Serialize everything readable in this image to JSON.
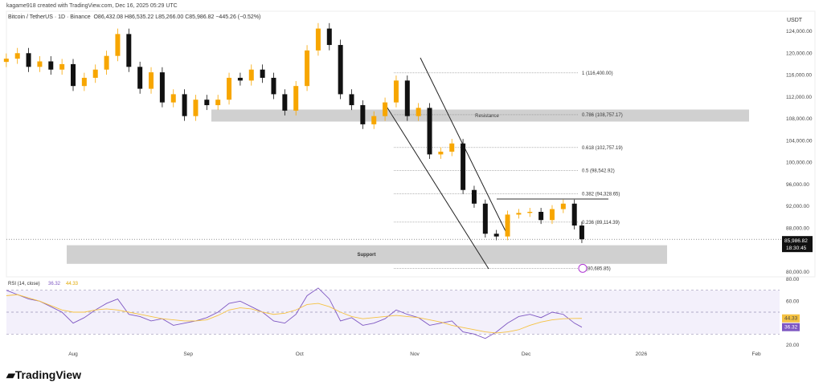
{
  "header": {
    "credit": "kagame918 created with TradingView.com, Dec 16, 2025 05:29 UTC",
    "symbol": "Bitcoin / TetherUS · 1D · Binance",
    "open": "O86,432.08",
    "high": "H86,535.22",
    "low": "L85,266.00",
    "close": "C85,986.82",
    "change": "−445.26 (−0.52%)"
  },
  "brand": "TradingView",
  "chart_data": [
    {
      "type": "candlestick",
      "title": "Bitcoin / TetherUS · 1D · Binance",
      "ylabel": "USDT",
      "ylim": [
        80000,
        124000
      ],
      "y_ticks": [
        "124,000.00",
        "120,000.00",
        "116,000.00",
        "112,000.00",
        "108,000.00",
        "104,000.00",
        "100,000.00",
        "96,000.00",
        "92,000.00",
        "88,000.00",
        "80,000.00"
      ],
      "x_ticks": [
        "Aug",
        "Sep",
        "Oct",
        "Nov",
        "Dec",
        "2026",
        "Feb"
      ],
      "dates": [
        "2025-07-14",
        "2025-07-17",
        "2025-07-20",
        "2025-07-23",
        "2025-07-26",
        "2025-07-29",
        "2025-08-01",
        "2025-08-04",
        "2025-08-07",
        "2025-08-10",
        "2025-08-13",
        "2025-08-16",
        "2025-08-19",
        "2025-08-22",
        "2025-08-25",
        "2025-08-28",
        "2025-08-31",
        "2025-09-03",
        "2025-09-06",
        "2025-09-09",
        "2025-09-12",
        "2025-09-15",
        "2025-09-18",
        "2025-09-21",
        "2025-09-24",
        "2025-09-27",
        "2025-09-30",
        "2025-10-03",
        "2025-10-06",
        "2025-10-09",
        "2025-10-12",
        "2025-10-15",
        "2025-10-18",
        "2025-10-21",
        "2025-10-24",
        "2025-10-27",
        "2025-10-30",
        "2025-11-02",
        "2025-11-05",
        "2025-11-08",
        "2025-11-11",
        "2025-11-14",
        "2025-11-17",
        "2025-11-20",
        "2025-11-23",
        "2025-11-26",
        "2025-11-29",
        "2025-12-02",
        "2025-12-05",
        "2025-12-08",
        "2025-12-11",
        "2025-12-14",
        "2025-12-16"
      ],
      "close": [
        119000,
        120000,
        117500,
        118500,
        117000,
        118000,
        114000,
        115500,
        117000,
        119500,
        123500,
        117500,
        113500,
        116500,
        111000,
        112500,
        108500,
        111500,
        110500,
        111500,
        115500,
        115000,
        117000,
        115500,
        112500,
        109500,
        114000,
        120500,
        124500,
        121500,
        112500,
        110500,
        107000,
        108500,
        111000,
        115000,
        108500,
        110000,
        101500,
        102000,
        103500,
        95000,
        92500,
        87000,
        86500,
        90500,
        90800,
        91000,
        89500,
        91500,
        92500,
        88500,
        85986.82
      ],
      "last_price": "85,986.82",
      "countdown": "18:30:45",
      "zones": [
        {
          "label": "Resistance",
          "from": 107500,
          "to": 109700
        },
        {
          "label": "Support",
          "from": 81500,
          "to": 84900
        }
      ],
      "fib_levels": [
        {
          "label": "1 (116,400.00)",
          "value": 116400
        },
        {
          "label": "0.786 (108,757.17)",
          "value": 108757.17
        },
        {
          "label": "0.618 (102,757.19)",
          "value": 102757.19
        },
        {
          "label": "0.5 (98,542.92)",
          "value": 98542.92
        },
        {
          "label": "0.382 (94,328.65)",
          "value": 94328.65
        },
        {
          "label": "0.236 (89,114.39)",
          "value": 89114.39
        },
        {
          "label": "(80,685.85)",
          "value": 80685.85
        }
      ],
      "colors": {
        "up": "#f7a600",
        "down": "#111111",
        "zone": "#d0d0d0",
        "rsi": "#7e57c2",
        "rsi_ma": "#f5c242"
      }
    },
    {
      "type": "line",
      "title": "RSI (14, close)",
      "ylim": [
        15,
        80
      ],
      "y_ticks": [
        "80.00",
        "60.00",
        "20.00"
      ],
      "series": [
        {
          "name": "RSI",
          "last": "36.32",
          "values": [
            70,
            66,
            62,
            60,
            55,
            50,
            40,
            45,
            52,
            58,
            62,
            48,
            46,
            42,
            44,
            38,
            40,
            42,
            45,
            50,
            58,
            60,
            55,
            50,
            42,
            40,
            48,
            65,
            72,
            62,
            42,
            45,
            38,
            40,
            44,
            52,
            48,
            45,
            38,
            40,
            42,
            32,
            30,
            26,
            32,
            40,
            46,
            48,
            45,
            50,
            48,
            40,
            36.32
          ]
        },
        {
          "name": "RSI MA",
          "last": "44.33",
          "values": [
            65,
            66,
            63,
            60,
            56,
            52,
            50,
            50,
            52,
            53,
            52,
            50,
            48,
            46,
            44,
            43,
            42,
            42,
            43,
            47,
            52,
            54,
            53,
            50,
            48,
            49,
            52,
            57,
            58,
            55,
            50,
            46,
            44,
            45,
            46,
            47,
            46,
            45,
            43,
            41,
            38,
            36,
            34,
            32,
            31,
            32,
            34,
            38,
            41,
            43,
            44,
            44.3,
            44.33
          ]
        }
      ]
    }
  ]
}
